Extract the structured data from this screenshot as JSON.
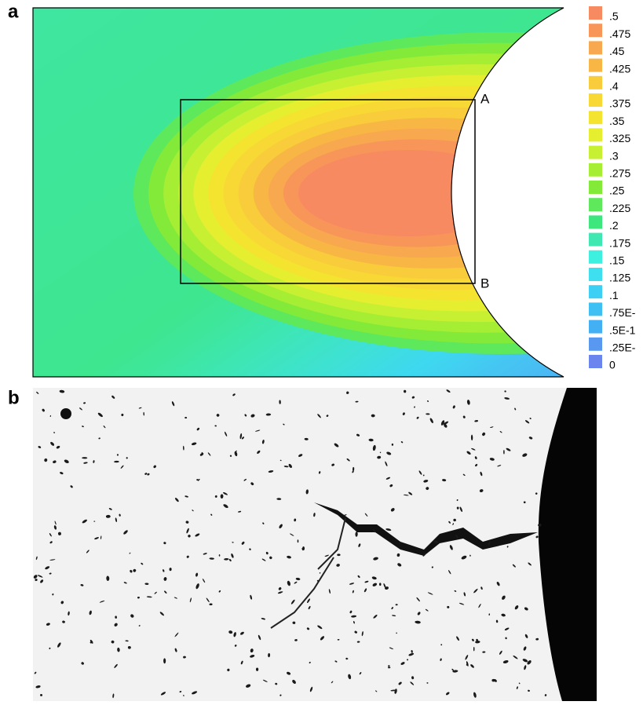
{
  "panel_a": {
    "label": "a",
    "points": [
      "A",
      "B"
    ],
    "legend": [
      {
        "label": ".5",
        "color": "#f88a62"
      },
      {
        "label": ".475",
        "color": "#f8965a"
      },
      {
        "label": ".45",
        "color": "#f8a84e"
      },
      {
        "label": ".425",
        "color": "#f8b644"
      },
      {
        "label": ".4",
        "color": "#f8cc3a"
      },
      {
        "label": ".375",
        "color": "#f8d834"
      },
      {
        "label": ".35",
        "color": "#f4e430"
      },
      {
        "label": ".325",
        "color": "#e6ee30"
      },
      {
        "label": ".3",
        "color": "#c8f032"
      },
      {
        "label": ".275",
        "color": "#a6ee34"
      },
      {
        "label": ".25",
        "color": "#84ea3a"
      },
      {
        "label": ".225",
        "color": "#5ee85c"
      },
      {
        "label": ".2",
        "color": "#3ee67e"
      },
      {
        "label": ".175",
        "color": "#3ee8b0"
      },
      {
        "label": ".15",
        "color": "#3ef0e0"
      },
      {
        "label": ".125",
        "color": "#3ee0f0"
      },
      {
        "label": ".1",
        "color": "#3ed0f4"
      },
      {
        "label": ".75E-",
        "color": "#3ec0f4"
      },
      {
        "label": ".5E-1",
        "color": "#44b0f4"
      },
      {
        "label": ".25E-",
        "color": "#5898f0"
      },
      {
        "label": "0",
        "color": "#6a86ee"
      }
    ]
  },
  "panel_b": {
    "label": "b"
  }
}
